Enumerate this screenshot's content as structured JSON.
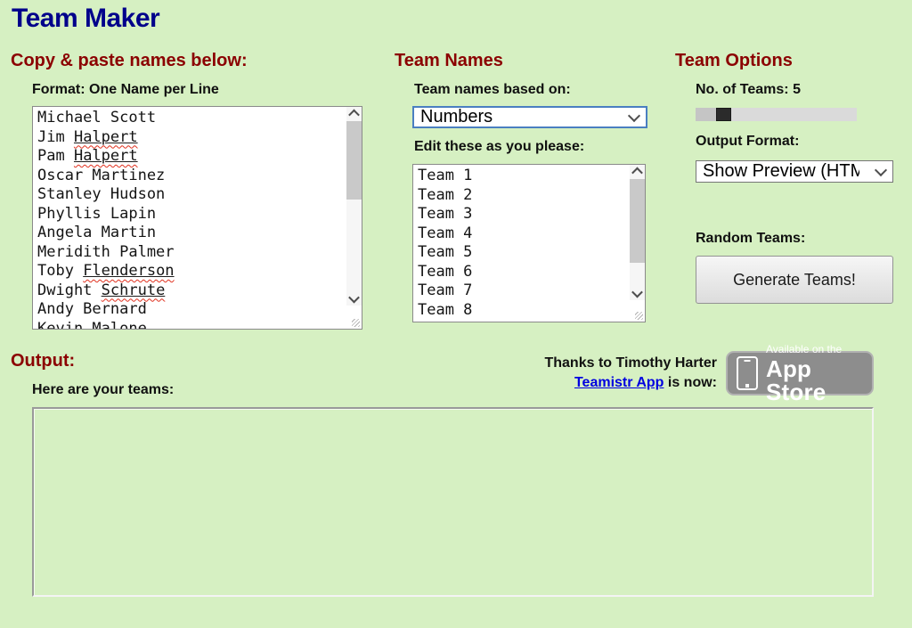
{
  "app": {
    "title": "Team Maker"
  },
  "colors": {
    "background": "#d6f0c2",
    "title": "#00008b",
    "section_heading": "#8b0000",
    "link": "#0000e0",
    "focus_border": "#4a7fc1",
    "slider_thumb": "#2b2b2b",
    "squiggle": "#e0301e"
  },
  "names_section": {
    "heading": "Copy & paste names below:",
    "format_label": "Format: One Name per Line",
    "lines": [
      {
        "text": "Michael Scott"
      },
      {
        "text": "Jim Halpert",
        "misspelled": "Halpert"
      },
      {
        "text": "Pam Halpert",
        "misspelled": "Halpert"
      },
      {
        "text": "Oscar Martinez"
      },
      {
        "text": "Stanley Hudson"
      },
      {
        "text": "Phyllis Lapin"
      },
      {
        "text": "Angela Martin"
      },
      {
        "text": "Meridith Palmer"
      },
      {
        "text": "Toby Flenderson",
        "misspelled": "Flenderson"
      },
      {
        "text": "Dwight Schrute",
        "misspelled": "Schrute"
      },
      {
        "text": "Andy Bernard"
      },
      {
        "text": "Kevin Malone"
      }
    ]
  },
  "team_names_section": {
    "heading": "Team Names",
    "based_on_label": "Team names based on:",
    "based_on_value": "Numbers",
    "edit_label": "Edit these as you please:",
    "lines": [
      {
        "text": "Team 1"
      },
      {
        "text": "Team 2"
      },
      {
        "text": "Team 3"
      },
      {
        "text": "Team 4"
      },
      {
        "text": "Team 5"
      },
      {
        "text": "Team 6"
      },
      {
        "text": "Team 7"
      },
      {
        "text": "Team 8"
      }
    ]
  },
  "team_options_section": {
    "heading": "Team Options",
    "num_teams_label": "No. of Teams:",
    "num_teams_value": "5",
    "output_format_label": "Output Format:",
    "output_format_value": "Show Preview (HTML)",
    "random_teams_label": "Random Teams:",
    "generate_button_label": "Generate Teams!"
  },
  "output_section": {
    "heading": "Output:",
    "teams_label": "Here are your teams:"
  },
  "credits": {
    "thanks_line": "Thanks to Timothy Harter",
    "link_text": "Teamistr App",
    "suffix_text": " is now:",
    "badge_small_text": "Available on the",
    "badge_large_text": "App Store"
  }
}
